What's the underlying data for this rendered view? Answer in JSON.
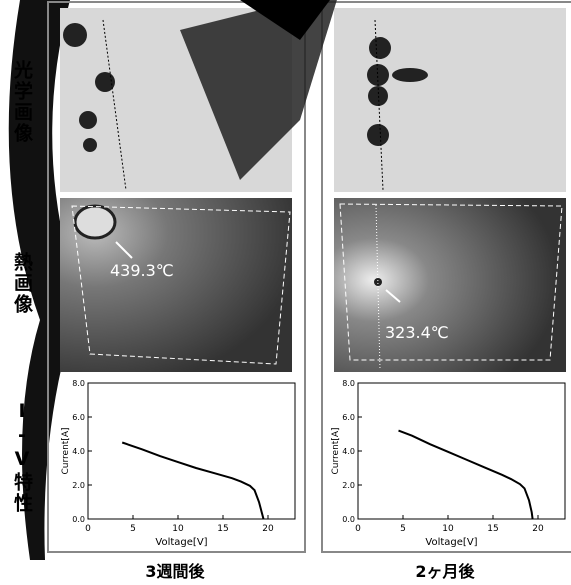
{
  "row_labels": [
    "光学画像",
    "熱画像",
    "I-V特性"
  ],
  "columns": [
    {
      "label": "3週間後",
      "annotation": "439.3℃"
    },
    {
      "label": "2ヶ月後",
      "annotation": "323.4℃"
    }
  ],
  "chart_data": [
    {
      "type": "line",
      "xlabel": "Voltage[V]",
      "ylabel": "Current[A]",
      "color": "#000000",
      "x": [
        3.8,
        6,
        8,
        10,
        12,
        14,
        16,
        17,
        18,
        18.5,
        19,
        19.3,
        19.5
      ],
      "values": [
        4.5,
        4.1,
        3.7,
        3.35,
        3.0,
        2.7,
        2.4,
        2.2,
        1.95,
        1.7,
        1.0,
        0.4,
        0
      ],
      "xlim": [
        0,
        23
      ],
      "ylim": [
        0,
        8
      ],
      "xticks": [
        0,
        5,
        10,
        15,
        20
      ],
      "yticks": [
        {
          "value": 0,
          "label": "0.0"
        },
        {
          "value": 2,
          "label": "2.0"
        },
        {
          "value": 4,
          "label": "4.0"
        },
        {
          "value": 6,
          "label": "6.0"
        },
        {
          "value": 8,
          "label": "8.0"
        }
      ]
    },
    {
      "type": "line",
      "xlabel": "Voltage[V]",
      "ylabel": "Current[A]",
      "color": "#000000",
      "x": [
        4.5,
        6,
        8,
        10,
        12,
        14,
        16,
        17,
        18,
        18.5,
        19,
        19.3,
        19.4
      ],
      "values": [
        5.2,
        4.9,
        4.4,
        3.95,
        3.5,
        3.05,
        2.6,
        2.35,
        2.05,
        1.8,
        1.1,
        0.4,
        0
      ],
      "xlim": [
        0,
        23
      ],
      "ylim": [
        0,
        8
      ],
      "xticks": [
        0,
        5,
        10,
        15,
        20
      ],
      "yticks": [
        {
          "value": 0,
          "label": "0.0"
        },
        {
          "value": 2,
          "label": "2.0"
        },
        {
          "value": 4,
          "label": "4.0"
        },
        {
          "value": 6,
          "label": "6.0"
        },
        {
          "value": 8,
          "label": "8.0"
        }
      ]
    }
  ]
}
